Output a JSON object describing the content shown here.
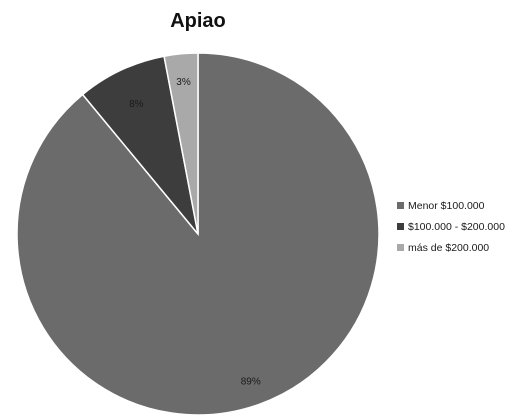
{
  "chart_data": {
    "type": "pie",
    "title": "Apiao",
    "slices": [
      {
        "name": "Menor $100.000",
        "value": 89,
        "label": "89%",
        "color": "#6b6b6b"
      },
      {
        "name": "$100.000 - $200.000",
        "value": 8,
        "label": "8%",
        "color": "#3d3d3d"
      },
      {
        "name": "más de $200.000",
        "value": 3,
        "label": "3%",
        "color": "#a9a9a9"
      }
    ],
    "legend_position": "right"
  }
}
